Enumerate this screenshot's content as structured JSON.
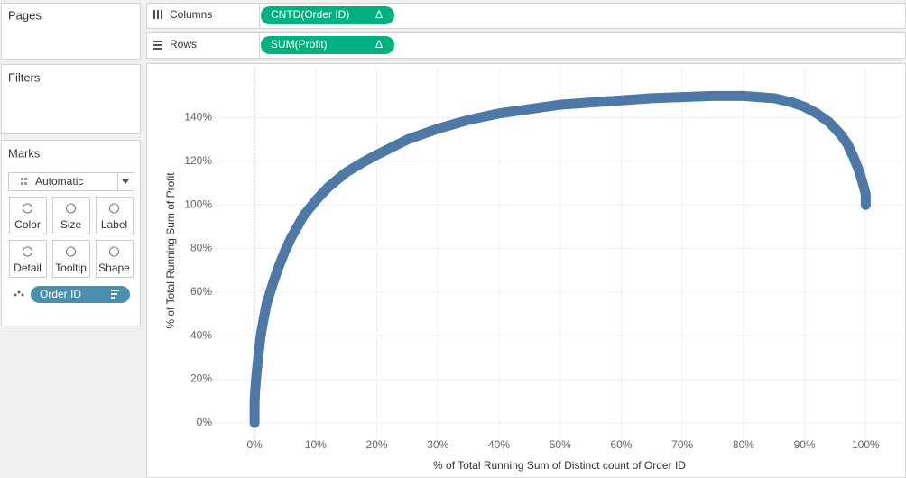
{
  "sidebar": {
    "pages": "Pages",
    "filters": "Filters",
    "marks": {
      "title": "Marks",
      "mark_type": "Automatic",
      "buttons": [
        "Color",
        "Size",
        "Label",
        "Detail",
        "Tooltip",
        "Shape"
      ],
      "field": "Order ID"
    }
  },
  "shelves": {
    "columns": {
      "label": "Columns",
      "pill": "CNTD(Order ID)",
      "pill_icon": "Δ"
    },
    "rows": {
      "label": "Rows",
      "pill": "SUM(Profit)",
      "pill_icon": "Δ"
    }
  },
  "chart_data": {
    "type": "scatter",
    "x_label": "% of Total Running Sum of Distinct count of Order ID",
    "y_label": "% of Total Running Sum of Profit",
    "color": "#4e79a7",
    "grid": true,
    "xlim": [
      -7.4,
      106
    ],
    "ylim": [
      -7.5,
      163
    ],
    "xticks": [
      {
        "value": 0,
        "label": "0%"
      },
      {
        "value": 10,
        "label": "10%"
      },
      {
        "value": 20,
        "label": "20%"
      },
      {
        "value": 30,
        "label": "30%"
      },
      {
        "value": 40,
        "label": "40%"
      },
      {
        "value": 50,
        "label": "50%"
      },
      {
        "value": 60,
        "label": "60%"
      },
      {
        "value": 70,
        "label": "70%"
      },
      {
        "value": 80,
        "label": "80%"
      },
      {
        "value": 90,
        "label": "90%"
      },
      {
        "value": 100,
        "label": "100%"
      }
    ],
    "yticks": [
      {
        "value": 0,
        "label": "0%"
      },
      {
        "value": 20,
        "label": "20%"
      },
      {
        "value": 40,
        "label": "40%"
      },
      {
        "value": 60,
        "label": "60%"
      },
      {
        "value": 80,
        "label": "80%"
      },
      {
        "value": 100,
        "label": "100%"
      },
      {
        "value": 120,
        "label": "120%"
      },
      {
        "value": 140,
        "label": "140%"
      }
    ],
    "x": [
      0,
      0,
      0,
      0.1,
      0.3,
      0.6,
      1,
      1.5,
      2,
      3,
      4,
      5,
      6,
      8,
      10,
      12,
      15,
      18,
      20,
      25,
      30,
      35,
      40,
      45,
      50,
      55,
      60,
      65,
      70,
      75,
      80,
      85,
      88,
      90,
      92,
      94,
      95,
      96,
      97,
      98,
      99,
      99.5,
      100,
      100
    ],
    "y": [
      0,
      5,
      10,
      15,
      22,
      30,
      40,
      48,
      55,
      64,
      72,
      79,
      85,
      95,
      102,
      108,
      115,
      120,
      123,
      130,
      135,
      139,
      142,
      144,
      146,
      147,
      148,
      149,
      149.5,
      150,
      150,
      149,
      147,
      145,
      142,
      138,
      135,
      132,
      128,
      122,
      115,
      110,
      105,
      100
    ]
  }
}
